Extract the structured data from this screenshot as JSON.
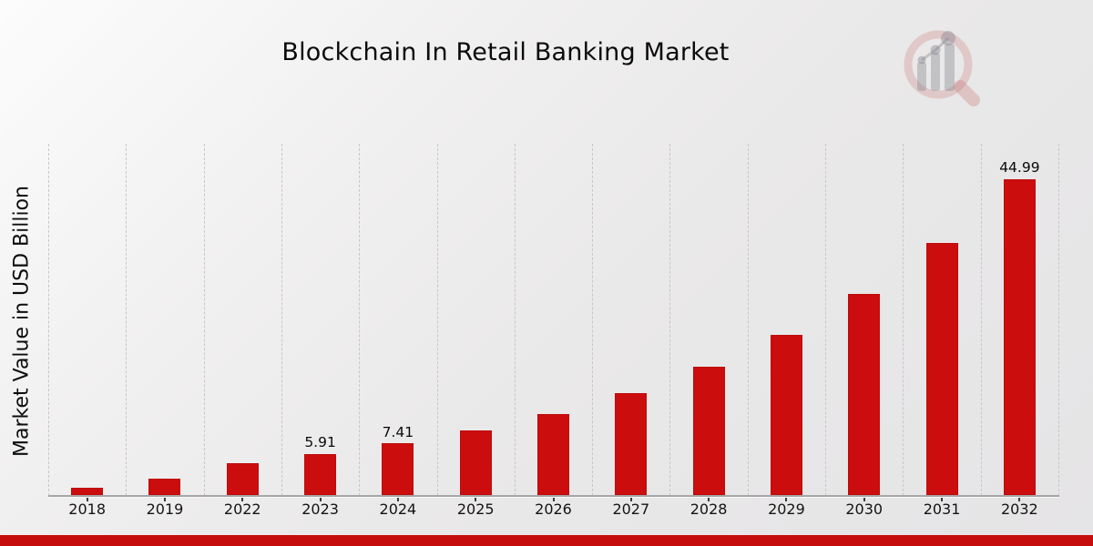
{
  "meta": {
    "title": "Blockchain In Retail Banking Market",
    "ylabel": "Market Value in USD Billion"
  },
  "colors": {
    "bar": "#cc0d0d",
    "bar_border": "#bf0c0c",
    "footer_strip": "#c50d0d",
    "grid": "#c7c7c9",
    "axis": "#a6a6a6",
    "text": "#111111",
    "logo_ring": "rgba(195,100,100,0.24)",
    "logo_gray": "rgba(132,132,140,0.40)"
  },
  "icons": {
    "logo": "magnifier-bar-chart-logo"
  },
  "chart_data": {
    "type": "bar",
    "title": "Blockchain In Retail Banking Market",
    "xlabel": "",
    "ylabel": "Market Value in USD Billion",
    "categories": [
      "2018",
      "2019",
      "2022",
      "2023",
      "2024",
      "2025",
      "2026",
      "2027",
      "2028",
      "2029",
      "2030",
      "2031",
      "2032"
    ],
    "values": [
      1.15,
      2.36,
      4.6,
      5.91,
      7.41,
      9.29,
      11.64,
      14.58,
      18.27,
      22.89,
      28.68,
      35.93,
      44.99
    ],
    "data_labels": {
      "2023": "5.91",
      "2024": "7.41",
      "2032": "44.99"
    },
    "ylim": [
      0,
      50
    ],
    "y_ticks_shown": false,
    "grid": "vertical-dashed",
    "legend": "none",
    "bar_color": "#cc0d0d"
  }
}
